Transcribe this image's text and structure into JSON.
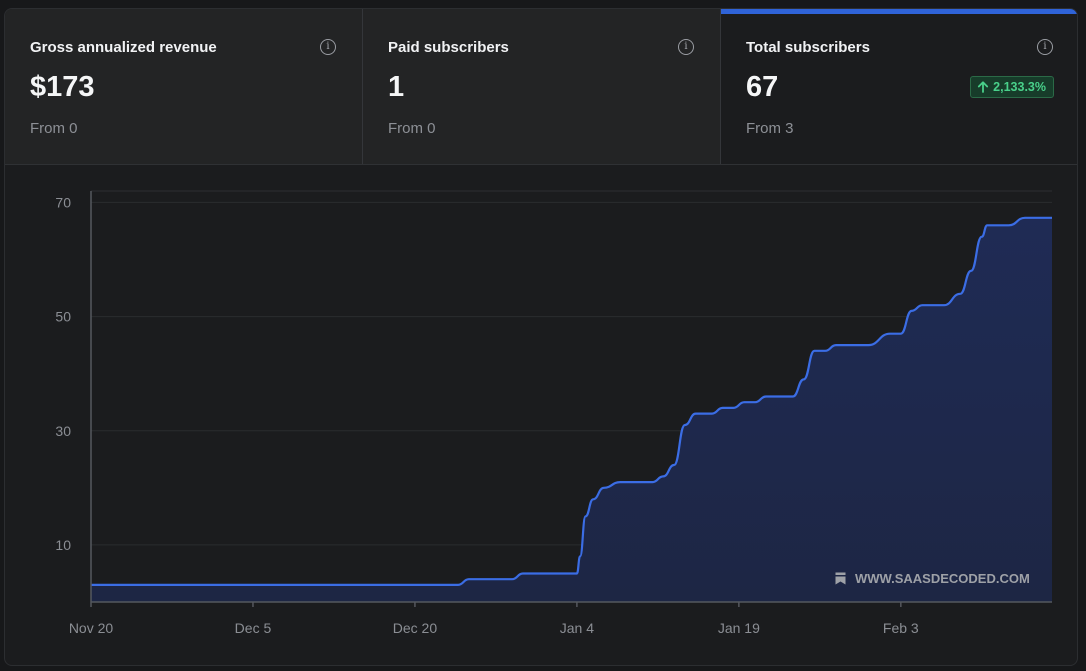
{
  "cards": [
    {
      "title": "Gross annualized revenue",
      "value": "$173",
      "from": "From 0"
    },
    {
      "title": "Paid subscribers",
      "value": "1",
      "from": "From 0"
    },
    {
      "title": "Total subscribers",
      "value": "67",
      "from": "From 3",
      "badge": "2,133.3%"
    }
  ],
  "icons": {
    "info": "info-icon",
    "up_arrow": "arrow-up-icon",
    "watermark": "bookmark-icon"
  },
  "watermark": "WWW.SAASDECODED.COM",
  "colors": {
    "accent": "#2f63d8",
    "line": "#3b6de5",
    "area": "#1f2b55",
    "badge_text": "#49d08a"
  },
  "chart_data": {
    "type": "area",
    "series_name": "Total subscribers",
    "x_ticks": [
      "Nov 20",
      "Dec 5",
      "Dec 20",
      "Jan 4",
      "Jan 19",
      "Feb 3"
    ],
    "y_ticks": [
      10,
      30,
      50,
      70
    ],
    "ylim": [
      0,
      72
    ],
    "x_days_range": [
      0,
      89
    ],
    "points": [
      [
        0,
        3
      ],
      [
        34,
        3
      ],
      [
        35,
        4
      ],
      [
        39,
        4
      ],
      [
        40,
        5
      ],
      [
        45,
        5
      ],
      [
        45.3,
        8
      ],
      [
        45.8,
        15
      ],
      [
        46.5,
        18
      ],
      [
        47.5,
        20
      ],
      [
        49,
        21
      ],
      [
        52,
        21
      ],
      [
        53,
        22
      ],
      [
        54,
        24
      ],
      [
        55,
        31
      ],
      [
        56,
        33
      ],
      [
        57.5,
        33
      ],
      [
        58.5,
        34
      ],
      [
        59.5,
        34
      ],
      [
        60.5,
        35
      ],
      [
        61.5,
        35
      ],
      [
        62.5,
        36
      ],
      [
        65,
        36
      ],
      [
        66,
        39
      ],
      [
        67,
        44
      ],
      [
        68,
        44
      ],
      [
        69,
        45
      ],
      [
        72,
        45
      ],
      [
        74,
        47
      ],
      [
        75,
        47
      ],
      [
        76,
        51
      ],
      [
        77,
        52
      ],
      [
        79,
        52
      ],
      [
        80.5,
        54
      ],
      [
        81.5,
        58
      ],
      [
        82.5,
        64
      ],
      [
        83,
        66
      ],
      [
        85,
        66
      ],
      [
        86.5,
        67.3
      ],
      [
        89,
        67.3
      ]
    ]
  }
}
